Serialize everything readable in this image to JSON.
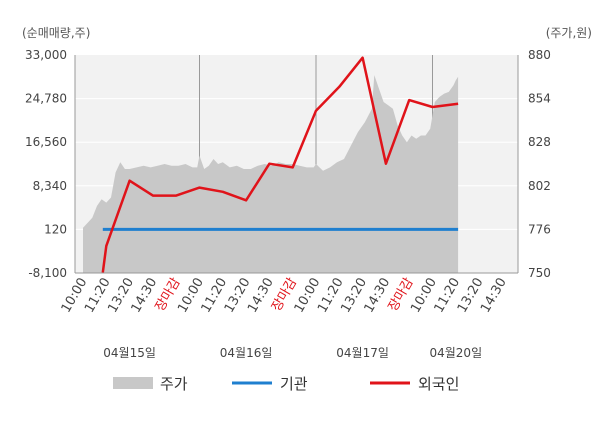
{
  "chart_data": {
    "type": "line",
    "left_axis_unit": "(순매매량,주)",
    "right_axis_unit": "(주가,원)",
    "left_ticks": [
      "33,000",
      "24,780",
      "16,560",
      "8,340",
      "120",
      "-8,100"
    ],
    "left_tick_values": [
      33000,
      24780,
      16560,
      8340,
      120,
      -8100
    ],
    "left_range": [
      -8100,
      33000
    ],
    "right_ticks": [
      "880",
      "854",
      "828",
      "802",
      "776",
      "750"
    ],
    "right_tick_values": [
      880,
      854,
      828,
      802,
      776,
      750
    ],
    "right_range": [
      750,
      880
    ],
    "x_ticks": [
      {
        "label": "10:00",
        "red": false
      },
      {
        "label": "11:20",
        "red": false
      },
      {
        "label": "13:20",
        "red": false
      },
      {
        "label": "14:30",
        "red": false
      },
      {
        "label": "장마감",
        "red": true
      },
      {
        "label": "10:00",
        "red": false
      },
      {
        "label": "11:20",
        "red": false
      },
      {
        "label": "13:20",
        "red": false
      },
      {
        "label": "14:30",
        "red": false
      },
      {
        "label": "장마감",
        "red": true
      },
      {
        "label": "10:00",
        "red": false
      },
      {
        "label": "11:20",
        "red": false
      },
      {
        "label": "13:20",
        "red": false
      },
      {
        "label": "14:30",
        "red": false
      },
      {
        "label": "장마감",
        "red": true
      },
      {
        "label": "10:00",
        "red": false
      },
      {
        "label": "11:20",
        "red": false
      },
      {
        "label": "13:20",
        "red": false
      },
      {
        "label": "14:30",
        "red": false
      }
    ],
    "dates": [
      {
        "label": "04월15일",
        "tick_index": 2
      },
      {
        "label": "04월16일",
        "tick_index": 7
      },
      {
        "label": "04월17일",
        "tick_index": 12
      },
      {
        "label": "04월20일",
        "tick_index": 16
      }
    ],
    "day_separator_ticks": [
      5,
      10,
      15
    ],
    "series": [
      {
        "name": "주가",
        "kind": "area",
        "axis": "right",
        "color": "#c8c8c8",
        "points": [
          [
            0.0,
            777
          ],
          [
            0.2,
            780
          ],
          [
            0.4,
            783
          ],
          [
            0.6,
            790
          ],
          [
            0.8,
            794
          ],
          [
            1.0,
            792
          ],
          [
            1.2,
            795
          ],
          [
            1.4,
            810
          ],
          [
            1.6,
            816
          ],
          [
            1.8,
            812
          ],
          [
            2.0,
            812
          ],
          [
            2.3,
            813
          ],
          [
            2.6,
            814
          ],
          [
            2.9,
            813
          ],
          [
            3.2,
            814
          ],
          [
            3.5,
            815
          ],
          [
            3.8,
            814
          ],
          [
            4.1,
            814
          ],
          [
            4.4,
            815
          ],
          [
            4.7,
            813
          ],
          [
            4.9,
            813
          ],
          [
            5.0,
            820
          ],
          [
            5.2,
            812
          ],
          [
            5.4,
            814
          ],
          [
            5.6,
            818
          ],
          [
            5.8,
            815
          ],
          [
            6.0,
            816
          ],
          [
            6.3,
            813
          ],
          [
            6.6,
            814
          ],
          [
            6.9,
            812
          ],
          [
            7.2,
            812
          ],
          [
            7.5,
            814
          ],
          [
            7.8,
            815
          ],
          [
            8.1,
            814
          ],
          [
            8.4,
            816
          ],
          [
            8.7,
            815
          ],
          [
            9.0,
            815
          ],
          [
            9.3,
            814
          ],
          [
            9.6,
            813
          ],
          [
            9.9,
            813
          ],
          [
            10.0,
            815
          ],
          [
            10.3,
            811
          ],
          [
            10.6,
            813
          ],
          [
            10.9,
            816
          ],
          [
            11.2,
            818
          ],
          [
            11.5,
            826
          ],
          [
            11.8,
            834
          ],
          [
            12.1,
            840
          ],
          [
            12.4,
            848
          ],
          [
            12.5,
            868
          ],
          [
            12.7,
            860
          ],
          [
            12.9,
            852
          ],
          [
            13.1,
            850
          ],
          [
            13.3,
            848
          ],
          [
            13.5,
            838
          ],
          [
            13.7,
            832
          ],
          [
            13.9,
            828
          ],
          [
            14.1,
            832
          ],
          [
            14.3,
            830
          ],
          [
            14.5,
            832
          ],
          [
            14.7,
            832
          ],
          [
            14.9,
            836
          ],
          [
            15.1,
            852
          ],
          [
            15.3,
            855
          ],
          [
            15.5,
            857
          ],
          [
            15.7,
            858
          ],
          [
            15.9,
            862
          ],
          [
            16.0,
            865
          ],
          [
            16.1,
            867
          ]
        ]
      },
      {
        "name": "기관",
        "kind": "line",
        "axis": "left",
        "color": "#1f7fcf",
        "points": [
          [
            0.85,
            120
          ],
          [
            16.1,
            120
          ]
        ]
      },
      {
        "name": "외국인",
        "kind": "line",
        "axis": "left",
        "color": "#e0131a",
        "points": [
          [
            0.85,
            -8000
          ],
          [
            1.0,
            -3000
          ],
          [
            2.0,
            9300
          ],
          [
            3.0,
            6500
          ],
          [
            4.0,
            6500
          ],
          [
            5.0,
            8000
          ],
          [
            6.0,
            7200
          ],
          [
            7.0,
            5600
          ],
          [
            8.0,
            12500
          ],
          [
            9.0,
            11800
          ],
          [
            10.0,
            22500
          ],
          [
            11.0,
            27000
          ],
          [
            12.0,
            32500
          ],
          [
            13.0,
            12500
          ],
          [
            14.0,
            24500
          ],
          [
            15.0,
            23200
          ],
          [
            16.1,
            23800
          ]
        ]
      }
    ],
    "legend": [
      {
        "name": "주가",
        "swatch": "area",
        "color": "#c8c8c8"
      },
      {
        "name": "기관",
        "swatch": "line",
        "color": "#1f7fcf"
      },
      {
        "name": "외국인",
        "swatch": "line",
        "color": "#e0131a"
      }
    ],
    "grid": true,
    "legend_position": "bottom"
  }
}
